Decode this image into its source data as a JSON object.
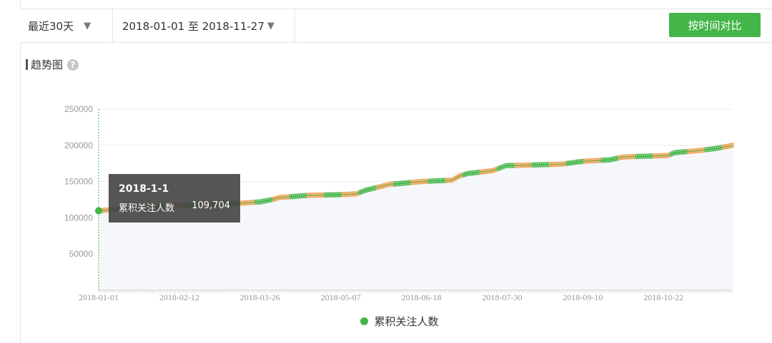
{
  "toolbar": {
    "period_label": "最近30天",
    "range_label": "2018-01-01 至 2018-11-27",
    "compare_button": "按时间对比"
  },
  "section": {
    "title": "趋势图",
    "help": "?"
  },
  "colors": {
    "accent": "#44b549",
    "alt_marker": "#f39c4a",
    "area": "#f5f7fa",
    "tooltip_bg": "#424242"
  },
  "tooltip": {
    "date": "2018-1-1",
    "metric": "累积关注人数",
    "value": "109,704"
  },
  "chart_data": {
    "type": "line",
    "title": "",
    "x_start": "2018-01-01",
    "x_end": "2018-11-27",
    "ylim": [
      0,
      250000
    ],
    "y_ticks": [
      50000,
      100000,
      150000,
      200000,
      250000
    ],
    "x_ticks": [
      "2018-01-01",
      "2018-02-12",
      "2018-03-26",
      "2018-05-07",
      "2018-06-18",
      "2018-07-30",
      "2018-09-10",
      "2018-10-22"
    ],
    "grid": true,
    "legend": "bottom",
    "series": [
      {
        "name": "累积关注人数",
        "points": [
          [
            "2018-01-01",
            109704
          ],
          [
            "2018-01-20",
            114000
          ],
          [
            "2018-02-12",
            117000
          ],
          [
            "2018-03-10",
            119000
          ],
          [
            "2018-03-26",
            122000
          ],
          [
            "2018-04-01",
            125000
          ],
          [
            "2018-04-05",
            128000
          ],
          [
            "2018-04-20",
            131000
          ],
          [
            "2018-05-07",
            132000
          ],
          [
            "2018-05-15",
            133000
          ],
          [
            "2018-05-20",
            138000
          ],
          [
            "2018-06-01",
            146000
          ],
          [
            "2018-06-18",
            150000
          ],
          [
            "2018-07-04",
            152000
          ],
          [
            "2018-07-08",
            158000
          ],
          [
            "2018-07-12",
            161000
          ],
          [
            "2018-07-25",
            165000
          ],
          [
            "2018-08-01",
            172000
          ],
          [
            "2018-08-30",
            174000
          ],
          [
            "2018-09-10",
            178000
          ],
          [
            "2018-09-24",
            180000
          ],
          [
            "2018-10-01",
            184000
          ],
          [
            "2018-10-24",
            186000
          ],
          [
            "2018-10-28",
            190000
          ],
          [
            "2018-11-10",
            193000
          ],
          [
            "2018-11-19",
            196000
          ],
          [
            "2018-11-27",
            200000
          ]
        ]
      }
    ]
  }
}
